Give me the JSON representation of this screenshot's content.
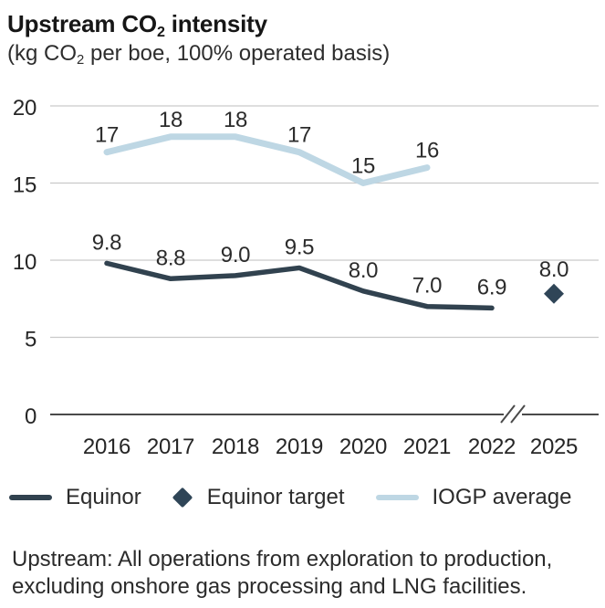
{
  "header": {
    "title": {
      "pre": "Upstream CO",
      "sub": "2",
      "post": " intensity"
    },
    "subtitle": {
      "pre": "(kg CO",
      "sub": "2",
      "post": " per boe, 100% operated basis)"
    }
  },
  "chart_data": {
    "type": "line",
    "title": "Upstream CO₂ intensity",
    "subtitle": "(kg CO₂ per boe, 100% operated basis)",
    "units": "kg CO₂ per boe, 100% operated basis",
    "xlabel": "",
    "ylabel": "",
    "ylim": [
      0,
      20
    ],
    "yticks": [
      0,
      5,
      10,
      15,
      20
    ],
    "grid": true,
    "legend_position": "bottom",
    "axis_break_after": "2022",
    "categories": [
      "2016",
      "2017",
      "2018",
      "2019",
      "2020",
      "2021",
      "2022",
      "2025"
    ],
    "series": [
      {
        "name": "Equinor",
        "kind": "line",
        "color": "#31424f",
        "values": [
          9.8,
          8.8,
          9.0,
          9.5,
          8.0,
          7.0,
          6.9,
          null
        ],
        "labels": [
          "9.8",
          "8.8",
          "9.0",
          "9.5",
          "8.0",
          "7.0",
          "6.9",
          null
        ]
      },
      {
        "name": "Equinor target",
        "kind": "diamond-marker",
        "color": "#2f4557",
        "values": [
          null,
          null,
          null,
          null,
          null,
          null,
          null,
          8.0
        ],
        "labels": [
          null,
          null,
          null,
          null,
          null,
          null,
          null,
          "8.0"
        ]
      },
      {
        "name": "IOGP average",
        "kind": "line",
        "color": "#bed7e4",
        "values": [
          17,
          18,
          18,
          17,
          15,
          16,
          null,
          null
        ],
        "labels": [
          "17",
          "18",
          "18",
          "17",
          "15",
          "16",
          null,
          null
        ]
      }
    ]
  },
  "footer": {
    "lines": [
      "Upstream: All operations from exploration to production,",
      "excluding onshore gas processing and LNG facilities."
    ]
  }
}
